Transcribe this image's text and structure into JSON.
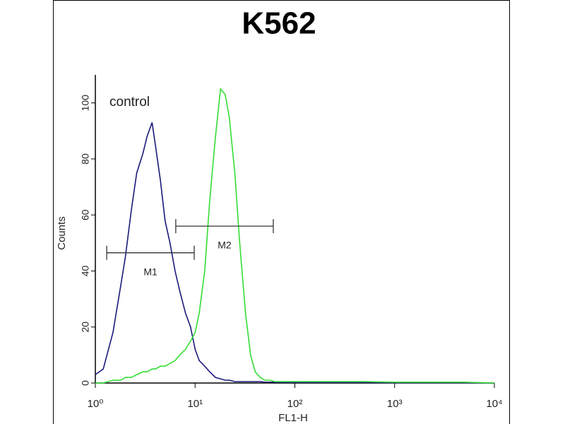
{
  "chart_data": {
    "type": "line",
    "title": "K562",
    "xlabel": "FL1-H",
    "ylabel": "Counts",
    "xscale": "log",
    "xlim": [
      1,
      10000
    ],
    "ylim": [
      0,
      110
    ],
    "xticks": [
      {
        "value": 1,
        "label": "10⁰"
      },
      {
        "value": 10,
        "label": "10¹"
      },
      {
        "value": 100,
        "label": "10²"
      },
      {
        "value": 1000,
        "label": "10³"
      },
      {
        "value": 10000,
        "label": "10⁴"
      }
    ],
    "yticks": [
      0,
      20,
      40,
      60,
      80,
      100
    ],
    "x": [
      1,
      1.2,
      1.5,
      1.8,
      2,
      2.3,
      2.6,
      3,
      3.3,
      3.7,
      4,
      4.5,
      5,
      5.6,
      6.3,
      7,
      8,
      9,
      10,
      11,
      12.5,
      14,
      16,
      18,
      20,
      22,
      25,
      28,
      32,
      36,
      40,
      45,
      50,
      56,
      63,
      70,
      80,
      100,
      200,
      500,
      1000,
      5000,
      10000
    ],
    "series": [
      {
        "name": "control",
        "color": "#1a1a7a",
        "values": [
          3,
          5,
          18,
          35,
          45,
          62,
          75,
          82,
          88,
          93,
          85,
          72,
          58,
          50,
          40,
          33,
          25,
          20,
          12,
          8,
          6,
          4,
          2,
          1.5,
          1,
          1,
          0.5,
          0.5,
          0.5,
          0.5,
          0.5,
          0.5,
          0.3,
          0.3,
          0.3,
          0.3,
          0.2,
          0.2,
          0.2,
          0.2,
          0.1,
          0.1,
          0
        ]
      },
      {
        "color": "#33dd33",
        "values": [
          0,
          0,
          1,
          1,
          2,
          2,
          3,
          4,
          4,
          5,
          5,
          6,
          6,
          7,
          8,
          10,
          12,
          15,
          18,
          25,
          40,
          65,
          88,
          105,
          103,
          95,
          75,
          50,
          25,
          10,
          4,
          2,
          1,
          1,
          0.5,
          0.5,
          0.5,
          0.5,
          0.5,
          0.5,
          0.3,
          0.3,
          0
        ]
      }
    ],
    "markers": [
      {
        "label": "M1",
        "range": [
          1.3,
          9.8
        ],
        "level": 46.5
      },
      {
        "label": "M2",
        "range": [
          6.4,
          60.8
        ],
        "level": 56
      }
    ]
  }
}
